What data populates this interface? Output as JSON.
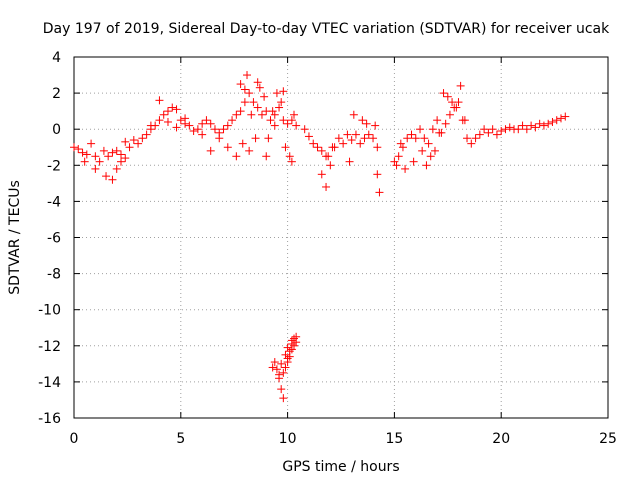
{
  "chart_data": {
    "type": "scatter",
    "title": "Day 197 of 2019, Sidereal Day-to-day VTEC variation (SDTVAR) for receiver ucak",
    "xlabel": "GPS time / hours",
    "ylabel": "SDTVAR / TECUs",
    "xlim": [
      0,
      25
    ],
    "ylim": [
      -16,
      4
    ],
    "xticks": [
      0,
      5,
      10,
      15,
      20,
      25
    ],
    "yticks": [
      -16,
      -14,
      -12,
      -10,
      -8,
      -6,
      -4,
      -2,
      0,
      2,
      4
    ],
    "xtick_labels": [
      "0",
      "5",
      "10",
      "15",
      "20",
      "25"
    ],
    "ytick_labels": [
      "-16",
      "-14",
      "-12",
      "-10",
      "-8",
      "-6",
      "-4",
      "-2",
      "0",
      "2",
      "4"
    ],
    "grid": true,
    "marker": "+",
    "color": "#ff0000",
    "series": [
      {
        "name": "SDTVAR",
        "x": [
          0.0,
          0.2,
          0.4,
          0.6,
          0.8,
          1.0,
          1.2,
          1.4,
          1.6,
          1.8,
          2.0,
          2.2,
          2.4,
          2.6,
          2.8,
          3.0,
          3.2,
          3.4,
          3.6,
          3.8,
          4.0,
          4.2,
          4.4,
          4.6,
          4.8,
          5.0,
          5.2,
          5.4,
          5.6,
          5.8,
          6.0,
          6.2,
          6.4,
          6.6,
          6.8,
          7.0,
          7.2,
          7.4,
          7.6,
          7.8,
          8.0,
          8.2,
          8.4,
          8.6,
          8.8,
          9.0,
          9.2,
          9.4,
          9.6,
          9.8,
          10.0,
          10.2,
          10.4,
          10.8,
          11.0,
          11.2,
          11.4,
          11.6,
          11.8,
          12.0,
          12.2,
          12.4,
          12.6,
          12.8,
          13.0,
          13.2,
          13.4,
          13.6,
          13.8,
          14.0,
          14.2,
          15.0,
          15.2,
          15.4,
          15.6,
          15.8,
          16.0,
          16.2,
          16.4,
          16.6,
          16.8,
          17.0,
          17.2,
          17.4,
          17.6,
          17.8,
          18.0,
          18.2,
          18.4,
          18.6,
          18.8,
          19.0,
          19.2,
          19.4,
          19.6,
          19.8,
          20.0,
          20.2,
          20.4,
          20.6,
          20.8,
          21.0,
          21.2,
          21.4,
          21.6,
          21.8,
          22.0,
          22.2,
          22.4,
          22.6,
          22.8,
          23.0,
          0.5,
          1.0,
          1.5,
          1.8,
          2.0,
          2.2,
          2.4,
          3.6,
          4.0,
          4.4,
          4.8,
          5.2,
          6.0,
          6.4,
          6.8,
          7.2,
          7.6,
          7.8,
          8.0,
          8.1,
          8.3,
          8.5,
          8.7,
          8.9,
          9.1,
          9.3,
          9.5,
          9.7,
          9.9,
          10.1,
          10.3,
          7.9,
          8.2,
          8.6,
          9.0,
          9.4,
          9.8,
          10.2,
          11.6,
          11.8,
          11.9,
          12.1,
          12.9,
          13.1,
          13.5,
          13.7,
          14.1,
          14.2,
          14.3,
          15.1,
          15.3,
          15.5,
          15.9,
          16.3,
          16.7,
          17.1,
          17.5,
          17.9,
          18.1,
          18.3,
          17.3,
          17.7,
          16.5,
          16.9,
          9.3,
          9.4,
          9.5,
          9.6,
          9.7,
          9.8,
          9.8,
          9.9,
          10.0,
          10.0,
          10.1,
          10.1,
          10.2,
          10.2,
          10.3,
          10.3,
          10.4,
          9.6,
          9.7,
          9.9,
          10.0,
          10.2,
          10.4
        ],
        "y": [
          -1.0,
          -1.1,
          -1.3,
          -1.4,
          -0.8,
          -1.5,
          -1.8,
          -1.2,
          -1.5,
          -1.3,
          -1.2,
          -1.4,
          -1.6,
          -1.0,
          -0.6,
          -0.8,
          -0.5,
          -0.3,
          0.0,
          0.2,
          0.5,
          0.8,
          1.0,
          1.2,
          1.1,
          0.5,
          0.3,
          0.2,
          -0.1,
          0.0,
          0.3,
          0.5,
          0.3,
          0.0,
          -0.2,
          0.0,
          0.2,
          0.5,
          0.8,
          1.0,
          1.5,
          2.0,
          1.5,
          1.2,
          0.8,
          1.0,
          0.5,
          0.8,
          1.2,
          0.5,
          0.3,
          0.5,
          0.2,
          0.0,
          -0.4,
          -0.8,
          -1.0,
          -1.2,
          -1.5,
          -2.0,
          -1.0,
          -0.5,
          -0.8,
          -0.3,
          -0.6,
          -0.3,
          -0.8,
          -0.5,
          -0.3,
          -0.5,
          -1.0,
          -1.8,
          -1.5,
          -1.0,
          -0.5,
          -0.3,
          -0.5,
          0.0,
          -0.5,
          -0.8,
          0.0,
          0.5,
          -0.2,
          0.3,
          0.8,
          1.2,
          1.5,
          0.5,
          -0.5,
          -0.8,
          -0.5,
          -0.3,
          0.0,
          -0.2,
          0.0,
          -0.3,
          -0.1,
          0.0,
          0.1,
          0.0,
          0.0,
          0.2,
          0.0,
          0.2,
          0.1,
          0.3,
          0.2,
          0.3,
          0.4,
          0.5,
          0.6,
          0.7,
          -1.8,
          -2.2,
          -2.6,
          -2.8,
          -2.2,
          -1.8,
          -0.7,
          0.2,
          1.6,
          0.4,
          0.1,
          0.6,
          -0.3,
          -1.2,
          -0.5,
          -1.0,
          -1.5,
          2.5,
          2.2,
          3.0,
          0.8,
          -0.5,
          2.3,
          1.8,
          -0.5,
          1.0,
          2.0,
          1.5,
          -1.0,
          -1.5,
          0.8,
          -0.8,
          -1.2,
          2.6,
          -1.5,
          0.2,
          2.1,
          -1.8,
          -2.5,
          -3.2,
          -1.5,
          -1.0,
          -1.8,
          0.8,
          0.5,
          0.3,
          0.2,
          -2.5,
          -3.5,
          -2.0,
          -0.8,
          -2.2,
          -1.8,
          -1.2,
          -1.5,
          -0.2,
          1.8,
          1.2,
          2.4,
          0.5,
          2.0,
          1.5,
          -2.0,
          -1.2,
          -13.2,
          -12.9,
          -13.3,
          -13.8,
          -14.4,
          -14.9,
          -13.5,
          -13.2,
          -12.7,
          -12.9,
          -12.3,
          -12.6,
          -11.9,
          -12.2,
          -11.6,
          -12.0,
          -11.8,
          -13.6,
          -13.0,
          -12.5,
          -12.1,
          -11.7,
          -11.5
        ],
        "extra_label": ""
      }
    ]
  }
}
